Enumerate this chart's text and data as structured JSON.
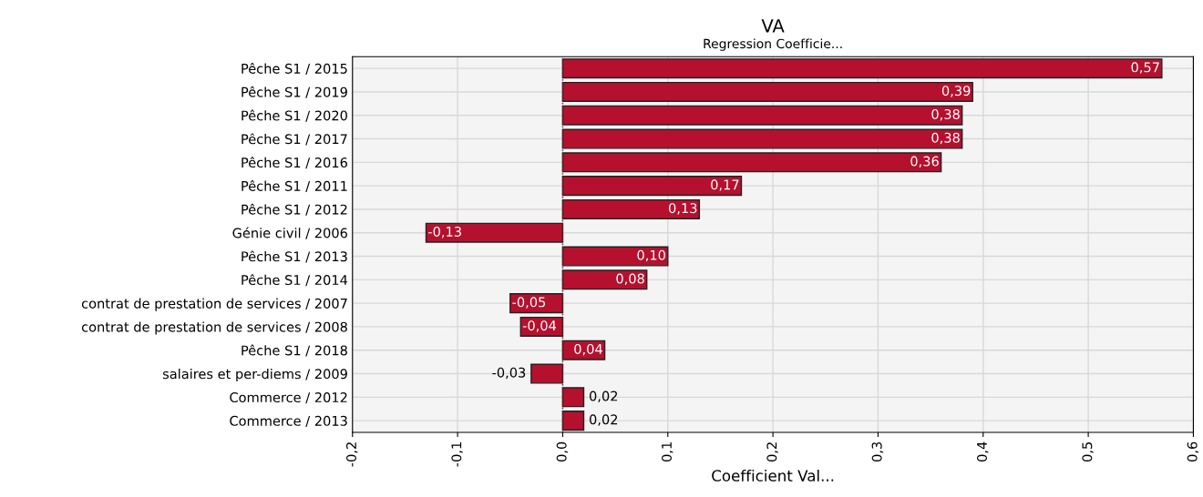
{
  "chart_data": {
    "type": "bar",
    "orientation": "horizontal",
    "title": "VA",
    "subtitle": "Regression Coefficie...",
    "xlabel": "Coefficient Val...",
    "categories": [
      "Pêche S1 / 2015",
      "Pêche S1 / 2019",
      "Pêche S1 / 2020",
      "Pêche S1 / 2017",
      "Pêche S1 / 2016",
      "Pêche S1 / 2011",
      "Pêche S1 / 2012",
      "Génie civil / 2006",
      "Pêche S1 / 2013",
      "Pêche S1 / 2014",
      "contrat de prestation de services / 2007",
      "contrat de prestation de services / 2008",
      "Pêche S1 / 2018",
      "salaires et per-diems / 2009",
      "Commerce / 2012",
      "Commerce / 2013"
    ],
    "values": [
      0.57,
      0.39,
      0.38,
      0.38,
      0.36,
      0.17,
      0.13,
      -0.13,
      0.1,
      0.08,
      -0.05,
      -0.04,
      0.04,
      -0.03,
      0.02,
      0.02
    ],
    "value_labels": [
      "0,57",
      "0,39",
      "0,38",
      "0,38",
      "0,36",
      "0,17",
      "0,13",
      "-0,13",
      "0,10",
      "0,08",
      "-0,05",
      "-0,04",
      "0,04",
      "-0,03",
      "0,02",
      "0,02"
    ],
    "color": "#b5112e",
    "xlim": [
      -0.2,
      0.6
    ],
    "xticks": [
      {
        "value": -0.2,
        "label": "-0,2"
      },
      {
        "value": -0.1,
        "label": "-0,1"
      },
      {
        "value": 0.0,
        "label": "0,0"
      },
      {
        "value": 0.1,
        "label": "0,1"
      },
      {
        "value": 0.2,
        "label": "0,2"
      },
      {
        "value": 0.3,
        "label": "0,3"
      },
      {
        "value": 0.4,
        "label": "0,4"
      },
      {
        "value": 0.5,
        "label": "0,5"
      },
      {
        "value": 0.6,
        "label": "0,6"
      }
    ],
    "ref_lines": [
      {
        "axis": "x",
        "value": 0,
        "label": null,
        "color": "#8b1a1a",
        "line_style": "dotted"
      }
    ],
    "grid": true
  }
}
